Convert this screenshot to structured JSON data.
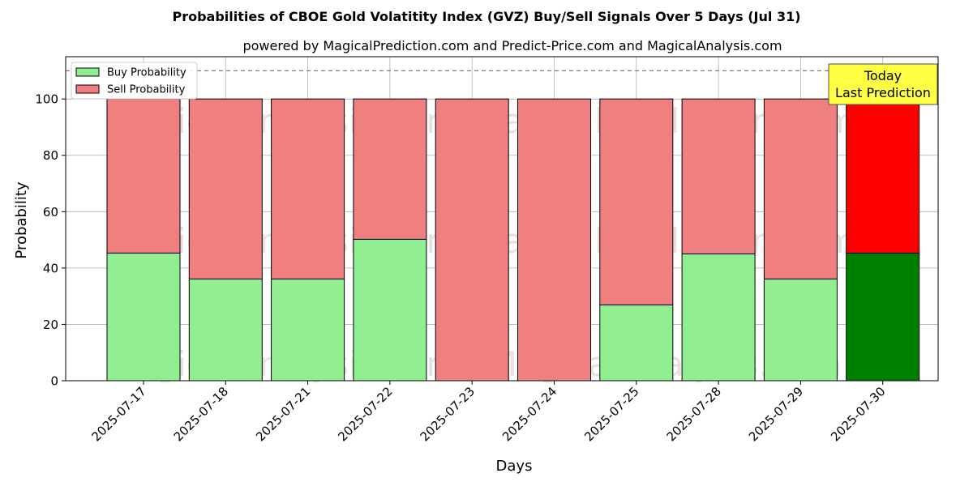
{
  "chart_data": {
    "type": "bar",
    "stacked": true,
    "title": "Probabilities of CBOE Gold Volatitity Index (GVZ) Buy/Sell Signals Over 5 Days (Jul 31)",
    "subtitle": "powered by MagicalPrediction.com and Predict-Price.com and MagicalAnalysis.com",
    "xlabel": "Days",
    "ylabel": "Probability",
    "ylim": [
      0,
      115
    ],
    "yticks": [
      0,
      20,
      40,
      60,
      80,
      100
    ],
    "grid": true,
    "legend_position": "top-left",
    "reference_line": 110,
    "categories": [
      "2025-07-17",
      "2025-07-18",
      "2025-07-21",
      "2025-07-22",
      "2025-07-23",
      "2025-07-24",
      "2025-07-25",
      "2025-07-28",
      "2025-07-29",
      "2025-07-30"
    ],
    "series": [
      {
        "name": "Buy Probability",
        "values": [
          45.3,
          36.1,
          36.1,
          50.2,
          0,
          0,
          26.9,
          45.0,
          36.1,
          45.3
        ]
      },
      {
        "name": "Sell Probability",
        "values": [
          54.7,
          63.9,
          63.9,
          49.8,
          100,
          100,
          73.1,
          55.0,
          63.9,
          54.7
        ]
      }
    ],
    "highlight_index": 9,
    "annotation": {
      "line1": "Today",
      "line2": "Last Prediction"
    },
    "watermarks": [
      "MagicalAnalysis.com",
      "MagicalPrediction.com"
    ]
  },
  "colors": {
    "buy": "#90ee90",
    "sell": "#f08080",
    "buy_highlight": "#008000",
    "sell_highlight": "#ff0000",
    "annotation_bg": "#ffff44"
  }
}
